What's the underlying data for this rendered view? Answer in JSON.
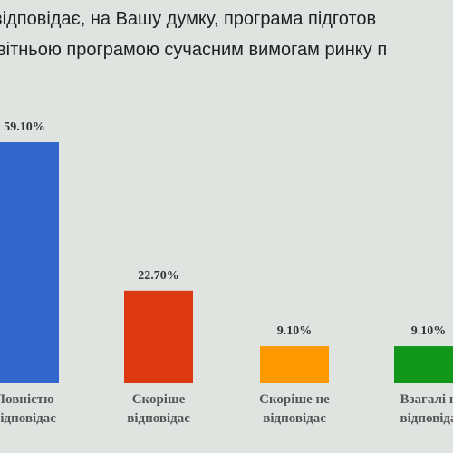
{
  "chart_data": {
    "type": "bar",
    "title_lines": [
      "відповідає, на Вашу думку, програма підготов",
      "вітньою програмою сучасним вимогам ринку п"
    ],
    "categories": [
      [
        "Повністю",
        "відповідає"
      ],
      [
        "Скоріше",
        "відповідає"
      ],
      [
        "Скоріше не",
        "відповідає"
      ],
      [
        "Взагалі н",
        "відповіда"
      ]
    ],
    "values": [
      59.1,
      22.7,
      9.1,
      9.1
    ],
    "value_labels": [
      "59.10%",
      "22.70%",
      "9.10%",
      "9.10%"
    ],
    "colors": [
      "#3366cc",
      "#dc3912",
      "#ff9900",
      "#109618"
    ],
    "ylim": [
      0,
      59.1
    ],
    "grid": false,
    "legend": "none"
  }
}
